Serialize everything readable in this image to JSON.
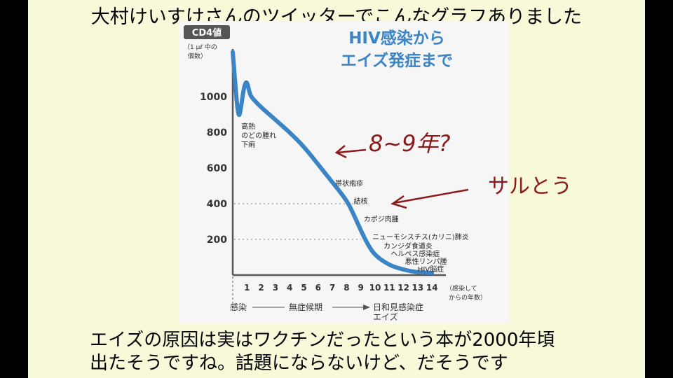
{
  "slide": {
    "title": "大村けいすけさんのツイッターでこんなグラフありました",
    "caption_line1": "エイズの原因は実はワクチンだったという本が2000年頃",
    "caption_line2": "出たそうですね。話題にならないけど、だそうです"
  },
  "handwriting": {
    "years_note": "8~9年?",
    "monkey_note": "サルとう"
  },
  "chart_data": {
    "type": "line",
    "title_line1": "HIV感染から",
    "title_line2": "エイズ発症まで",
    "ylabel": "CD4値",
    "ylabel_unit_line1": "（1 μℓ 中の",
    "ylabel_unit_line2": "個数）",
    "yticks": [
      1000,
      800,
      600,
      400,
      200
    ],
    "xticks": [
      "1",
      "2",
      "3",
      "4",
      "5",
      "6",
      "7",
      "8",
      "9",
      "10",
      "11",
      "12",
      "13",
      "14"
    ],
    "xlabel_line1": "（感染して",
    "xlabel_line2": "からの年数）",
    "xlim": [
      0,
      15
    ],
    "ylim": [
      0,
      1300
    ],
    "series": [
      {
        "color": "#3b85c6",
        "x": [
          0,
          0.15,
          0.3,
          0.45,
          0.6,
          0.8,
          1.0,
          1.2,
          1.5,
          2,
          3,
          4,
          5,
          6,
          7,
          8,
          8.5,
          9,
          9.5,
          10,
          11,
          12,
          13,
          14
        ],
        "y": [
          1250,
          1100,
          950,
          880,
          950,
          1060,
          1090,
          1010,
          980,
          940,
          870,
          800,
          720,
          620,
          520,
          420,
          340,
          250,
          170,
          110,
          55,
          30,
          15,
          12
        ]
      }
    ],
    "reference_lines": [
      400,
      200
    ],
    "annotations": [
      {
        "lines": [
          "高熱",
          "のどの腫れ",
          "下痢"
        ],
        "x": 0.6,
        "y": 820
      },
      {
        "lines": [
          "帯状疱疹"
        ],
        "x": 7.2,
        "y": 500
      },
      {
        "lines": [
          "結核"
        ],
        "x": 8.5,
        "y": 400
      },
      {
        "lines": [
          "カポジ肉腫"
        ],
        "x": 9.2,
        "y": 300
      },
      {
        "lines": [
          "ニューモシスチス(カリニ)肺炎"
        ],
        "x": 9.8,
        "y": 200
      },
      {
        "lines": [
          "カンジダ食道炎"
        ],
        "x": 10.6,
        "y": 150
      },
      {
        "lines": [
          "ヘルペス感染症"
        ],
        "x": 11.1,
        "y": 105
      },
      {
        "lines": [
          "悪性リンパ腫"
        ],
        "x": 12.1,
        "y": 62
      },
      {
        "lines": [
          "HIV脳症"
        ],
        "x": 13.0,
        "y": 20
      }
    ],
    "phases": {
      "infection": "感染",
      "asymptomatic": "無症候期",
      "opportunistic": "日和見感染症",
      "aids": "エイズ"
    }
  }
}
